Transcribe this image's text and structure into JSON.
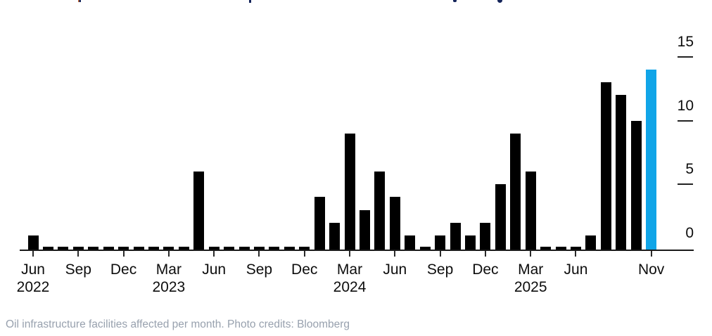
{
  "chart_data": {
    "type": "bar",
    "categories": [
      "Jun 2022",
      "Jul 2022",
      "Aug 2022",
      "Sep 2022",
      "Oct 2022",
      "Nov 2022",
      "Dec 2022",
      "Jan 2023",
      "Feb 2023",
      "Mar 2023",
      "Apr 2023",
      "May 2023",
      "Jun 2023",
      "Jul 2023",
      "Aug 2023",
      "Sep 2023",
      "Oct 2023",
      "Nov 2023",
      "Dec 2023",
      "Jan 2024",
      "Feb 2024",
      "Mar 2024",
      "Apr 2024",
      "May 2024",
      "Jun 2024",
      "Jul 2024",
      "Aug 2024",
      "Sep 2024",
      "Oct 2024",
      "Nov 2024",
      "Dec 2024",
      "Jan 2025",
      "Feb 2025",
      "Mar 2025",
      "Apr 2025",
      "May 2025",
      "Jun 2025",
      "Jul 2025",
      "Aug 2025",
      "Sep 2025",
      "Oct 2025",
      "Nov 2025"
    ],
    "values": [
      1,
      0,
      0,
      0,
      0,
      0,
      0,
      0,
      0,
      0,
      0,
      6,
      0,
      0,
      0,
      0,
      0,
      0,
      0,
      4,
      2,
      9,
      3,
      6,
      4,
      1,
      0,
      1,
      2,
      1,
      2,
      5,
      9,
      6,
      0,
      0,
      0,
      1,
      13,
      12,
      10,
      14
    ],
    "highlight_index": 41,
    "highlight_category": "Nov 2025",
    "colors": {
      "bar": "#000000",
      "highlight": "#10a5e8",
      "axis": "#1a1a1a",
      "tick_label": "#0d0d0d",
      "caption": "#98a1ae"
    },
    "y_axis": {
      "side": "right",
      "ticks": [
        0,
        5,
        10,
        15
      ],
      "ylim": [
        0,
        15
      ],
      "grid": "short right-side dashes only"
    },
    "x_axis": {
      "ticks": [
        {
          "index": 0,
          "label": "Jun",
          "year": "2022"
        },
        {
          "index": 3,
          "label": "Sep",
          "year": ""
        },
        {
          "index": 6,
          "label": "Dec",
          "year": ""
        },
        {
          "index": 9,
          "label": "Mar",
          "year": "2023"
        },
        {
          "index": 12,
          "label": "Jun",
          "year": ""
        },
        {
          "index": 15,
          "label": "Sep",
          "year": ""
        },
        {
          "index": 18,
          "label": "Dec",
          "year": ""
        },
        {
          "index": 21,
          "label": "Mar",
          "year": "2024"
        },
        {
          "index": 24,
          "label": "Jun",
          "year": ""
        },
        {
          "index": 27,
          "label": "Sep",
          "year": ""
        },
        {
          "index": 30,
          "label": "Dec",
          "year": ""
        },
        {
          "index": 33,
          "label": "Mar",
          "year": "2025"
        },
        {
          "index": 36,
          "label": "Jun",
          "year": ""
        },
        {
          "index": 41,
          "label": "Nov",
          "year": ""
        }
      ]
    },
    "zero_value_style": "short black dash on baseline for each zero month"
  },
  "footer": {
    "caption": "Oil infrastructure facilities affected per month. Photo credits: Bloomberg"
  }
}
